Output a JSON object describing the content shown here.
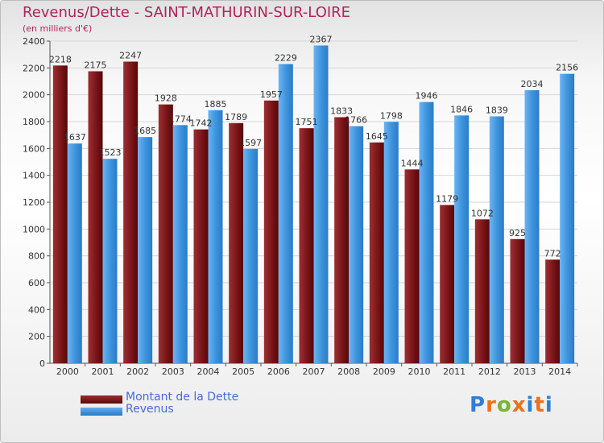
{
  "title": "Revenus/Dette - SAINT-MATHURIN-SUR-LOIRE",
  "subtitle": "(en milliers d'€)",
  "legend": {
    "dette": "Montant de la Dette",
    "revenus": "Revenus"
  },
  "logo": {
    "text": "Proxiti",
    "colors": [
      "#2f7fd8",
      "#e8731c",
      "#79b530",
      "#e8731c",
      "#2f7fd8",
      "#e8731c",
      "#2f7fd8"
    ]
  },
  "colors": {
    "dette": "#7a1518",
    "revenus": "#3a8fd9",
    "label": "#333333",
    "grid": "#d6d6d6",
    "axis": "#555555"
  },
  "chart_data": {
    "type": "bar",
    "categories": [
      "2000",
      "2001",
      "2002",
      "2003",
      "2004",
      "2005",
      "2006",
      "2007",
      "2008",
      "2009",
      "2010",
      "2011",
      "2012",
      "2013",
      "2014"
    ],
    "series": [
      {
        "name": "Montant de la Dette",
        "values": [
          2218,
          2175,
          2247,
          1928,
          1742,
          1789,
          1957,
          1751,
          1833,
          1645,
          1444,
          1179,
          1072,
          925,
          772
        ]
      },
      {
        "name": "Revenus",
        "values": [
          1637,
          1523,
          1685,
          1774,
          1885,
          1597,
          2229,
          2367,
          1766,
          1798,
          1946,
          1846,
          1839,
          2034,
          2156
        ]
      }
    ],
    "ylim": [
      0,
      2400
    ],
    "yticks": [
      0,
      200,
      400,
      600,
      800,
      1000,
      1200,
      1400,
      1600,
      1800,
      2000,
      2200,
      2400
    ],
    "grid": true
  }
}
